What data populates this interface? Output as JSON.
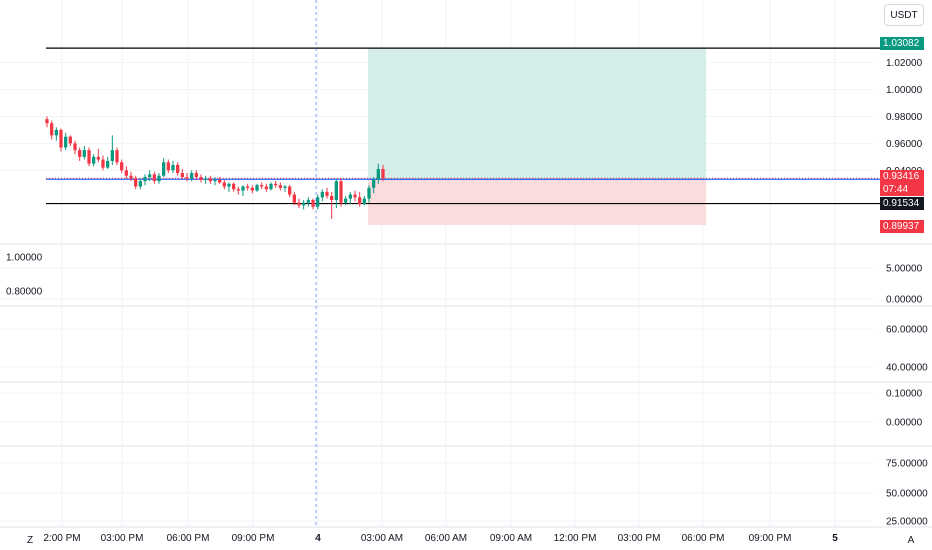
{
  "currency": "USDT",
  "corner_left": "Z",
  "corner_right": "A",
  "colors": {
    "up": "#089981",
    "down": "#f23645",
    "profit_zone": "#d5ede8",
    "loss_zone": "#fbdcdc",
    "entry_line": "#2962ff",
    "grid": "#f0f3fa"
  },
  "price_tags": {
    "target": "1.03082",
    "current": "0.93416",
    "countdown": "07:44",
    "stop_line": "0.91534",
    "stop": "0.89937"
  },
  "chart_data": [
    {
      "type": "candlestick",
      "name": "main",
      "y_ticks": [
        "1.02000",
        "1.00000",
        "0.98000",
        "0.96000",
        "0.94000"
      ],
      "ylim": [
        0.889,
        1.045
      ],
      "x_ticks": [
        "2:00 PM",
        "03:00 PM",
        "06:00 PM",
        "09:00 PM",
        "4",
        "03:00 AM",
        "06:00 AM",
        "09:00 AM",
        "12:00 PM",
        "03:00 PM",
        "06:00 PM",
        "09:00 PM",
        "5"
      ],
      "horizontal_lines": {
        "target": 1.03082,
        "stop_line": 0.91534,
        "entry": 0.9334,
        "current": 0.93416
      },
      "position": {
        "entry": 0.9334,
        "target": 1.03082,
        "stop": 0.89937
      },
      "candles": [
        [
          0.978,
          0.98,
          0.972,
          0.975
        ],
        [
          0.975,
          0.977,
          0.963,
          0.966
        ],
        [
          0.966,
          0.972,
          0.962,
          0.97
        ],
        [
          0.97,
          0.971,
          0.954,
          0.957
        ],
        [
          0.957,
          0.968,
          0.955,
          0.965
        ],
        [
          0.965,
          0.966,
          0.958,
          0.96
        ],
        [
          0.96,
          0.962,
          0.952,
          0.955
        ],
        [
          0.955,
          0.957,
          0.947,
          0.95
        ],
        [
          0.95,
          0.958,
          0.948,
          0.955
        ],
        [
          0.955,
          0.957,
          0.943,
          0.945
        ],
        [
          0.945,
          0.952,
          0.943,
          0.95
        ],
        [
          0.95,
          0.956,
          0.946,
          0.948
        ],
        [
          0.948,
          0.951,
          0.94,
          0.942
        ],
        [
          0.942,
          0.95,
          0.941,
          0.947
        ],
        [
          0.947,
          0.966,
          0.944,
          0.955
        ],
        [
          0.955,
          0.957,
          0.944,
          0.946
        ],
        [
          0.946,
          0.948,
          0.938,
          0.94
        ],
        [
          0.94,
          0.943,
          0.934,
          0.936
        ],
        [
          0.936,
          0.939,
          0.932,
          0.934
        ],
        [
          0.934,
          0.936,
          0.926,
          0.928
        ],
        [
          0.928,
          0.934,
          0.926,
          0.932
        ],
        [
          0.932,
          0.937,
          0.929,
          0.935
        ],
        [
          0.935,
          0.94,
          0.932,
          0.937
        ],
        [
          0.937,
          0.939,
          0.93,
          0.932
        ],
        [
          0.932,
          0.938,
          0.93,
          0.936
        ],
        [
          0.936,
          0.949,
          0.935,
          0.946
        ],
        [
          0.946,
          0.948,
          0.938,
          0.94
        ],
        [
          0.94,
          0.947,
          0.938,
          0.944
        ],
        [
          0.944,
          0.946,
          0.936,
          0.938
        ],
        [
          0.938,
          0.941,
          0.934,
          0.935
        ],
        [
          0.935,
          0.938,
          0.932,
          0.934
        ],
        [
          0.934,
          0.94,
          0.932,
          0.938
        ],
        [
          0.938,
          0.94,
          0.933,
          0.935
        ],
        [
          0.935,
          0.937,
          0.931,
          0.933
        ],
        [
          0.933,
          0.936,
          0.93,
          0.934
        ],
        [
          0.934,
          0.936,
          0.93,
          0.932
        ],
        [
          0.932,
          0.935,
          0.929,
          0.933
        ],
        [
          0.933,
          0.935,
          0.93,
          0.931
        ],
        [
          0.931,
          0.933,
          0.926,
          0.928
        ],
        [
          0.928,
          0.931,
          0.924,
          0.93
        ],
        [
          0.93,
          0.931,
          0.924,
          0.926
        ],
        [
          0.926,
          0.928,
          0.922,
          0.925
        ],
        [
          0.925,
          0.929,
          0.921,
          0.928
        ],
        [
          0.928,
          0.93,
          0.925,
          0.927
        ],
        [
          0.927,
          0.929,
          0.923,
          0.925
        ],
        [
          0.925,
          0.93,
          0.924,
          0.929
        ],
        [
          0.929,
          0.931,
          0.926,
          0.928
        ],
        [
          0.928,
          0.93,
          0.924,
          0.926
        ],
        [
          0.926,
          0.931,
          0.925,
          0.93
        ],
        [
          0.93,
          0.932,
          0.927,
          0.929
        ],
        [
          0.929,
          0.931,
          0.925,
          0.927
        ],
        [
          0.927,
          0.929,
          0.924,
          0.928
        ],
        [
          0.928,
          0.929,
          0.92,
          0.922
        ],
        [
          0.922,
          0.924,
          0.914,
          0.916
        ],
        [
          0.916,
          0.919,
          0.912,
          0.914
        ],
        [
          0.914,
          0.918,
          0.911,
          0.916
        ],
        [
          0.916,
          0.92,
          0.913,
          0.918
        ],
        [
          0.918,
          0.919,
          0.911,
          0.913
        ],
        [
          0.913,
          0.922,
          0.911,
          0.92
        ],
        [
          0.92,
          0.926,
          0.917,
          0.924
        ],
        [
          0.924,
          0.927,
          0.919,
          0.921
        ],
        [
          0.921,
          0.924,
          0.904,
          0.918
        ],
        [
          0.918,
          0.934,
          0.912,
          0.932
        ],
        [
          0.932,
          0.934,
          0.913,
          0.916
        ],
        [
          0.916,
          0.921,
          0.914,
          0.919
        ],
        [
          0.919,
          0.924,
          0.915,
          0.922
        ],
        [
          0.922,
          0.925,
          0.917,
          0.92
        ],
        [
          0.92,
          0.924,
          0.913,
          0.915
        ],
        [
          0.915,
          0.921,
          0.914,
          0.919
        ],
        [
          0.919,
          0.929,
          0.916,
          0.927
        ],
        [
          0.927,
          0.935,
          0.923,
          0.933
        ],
        [
          0.933,
          0.945,
          0.93,
          0.941
        ],
        [
          0.941,
          0.944,
          0.932,
          0.934
        ]
      ]
    },
    {
      "type": "indicator",
      "name": "pane-1",
      "y_ticks_left": [
        "1.00000",
        "0.80000"
      ],
      "y_ticks_right": [
        "5.00000",
        "0.00000"
      ]
    },
    {
      "type": "indicator",
      "name": "pane-2",
      "y_ticks_right": [
        "60.00000",
        "40.00000"
      ]
    },
    {
      "type": "indicator",
      "name": "pane-3",
      "y_ticks_right": [
        "0.10000",
        "0.00000"
      ]
    },
    {
      "type": "indicator",
      "name": "pane-4",
      "y_ticks_right": [
        "75.00000",
        "50.00000",
        "25.00000"
      ]
    }
  ]
}
